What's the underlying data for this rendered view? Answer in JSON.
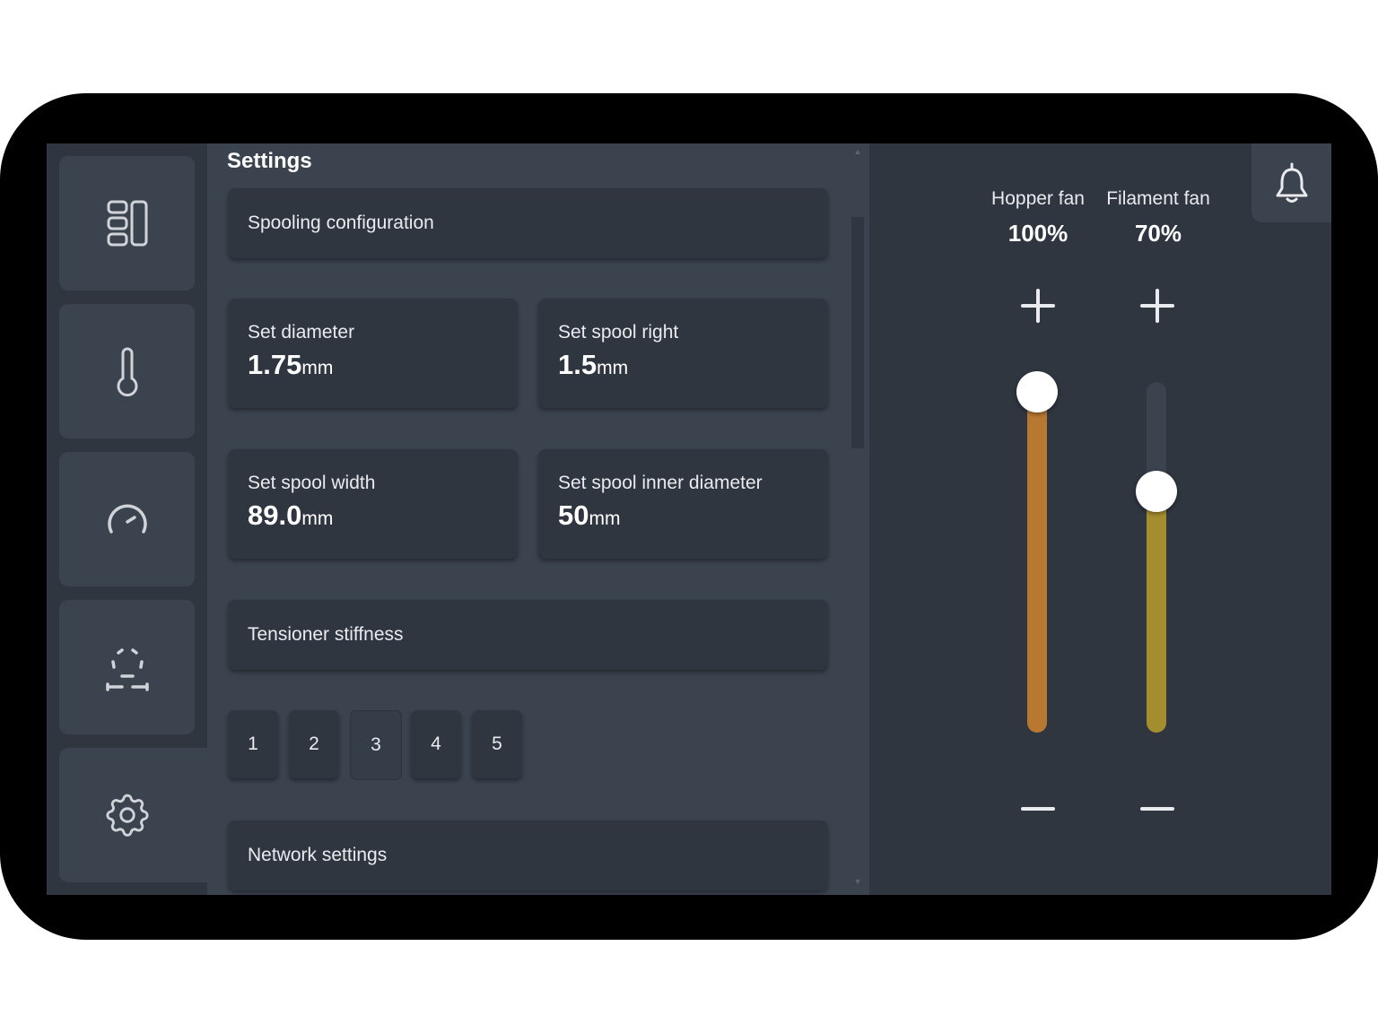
{
  "nav": {
    "items": [
      {
        "name": "dashboard-icon"
      },
      {
        "name": "thermometer-icon"
      },
      {
        "name": "speedometer-icon"
      },
      {
        "name": "spool-frame-icon"
      },
      {
        "name": "gear-icon"
      }
    ],
    "active_index": 4
  },
  "settings": {
    "title": "Settings",
    "spooling_section": "Spooling configuration",
    "cards": [
      {
        "label": "Set diameter",
        "value": "1.75",
        "unit": "mm"
      },
      {
        "label": "Set spool right",
        "value": "1.5",
        "unit": "mm"
      },
      {
        "label": "Set spool width",
        "value": "89.0",
        "unit": "mm"
      },
      {
        "label": "Set spool inner diameter",
        "value": "50",
        "unit": "mm"
      }
    ],
    "tensioner_section": "Tensioner stiffness",
    "stiffness_options": [
      "1",
      "2",
      "3",
      "4",
      "5"
    ],
    "stiffness_selected": "3",
    "network_section": "Network settings"
  },
  "fans": {
    "hopper": {
      "label": "Hopper fan",
      "percent": "100%",
      "level": 1.0,
      "color": "#b87832"
    },
    "filament": {
      "label": "Filament fan",
      "percent": "70%",
      "level": 0.7,
      "color": "#a48d2f"
    }
  },
  "icons": {
    "notification": "bell-icon",
    "increase": "plus-icon",
    "decrease": "minus-icon"
  }
}
